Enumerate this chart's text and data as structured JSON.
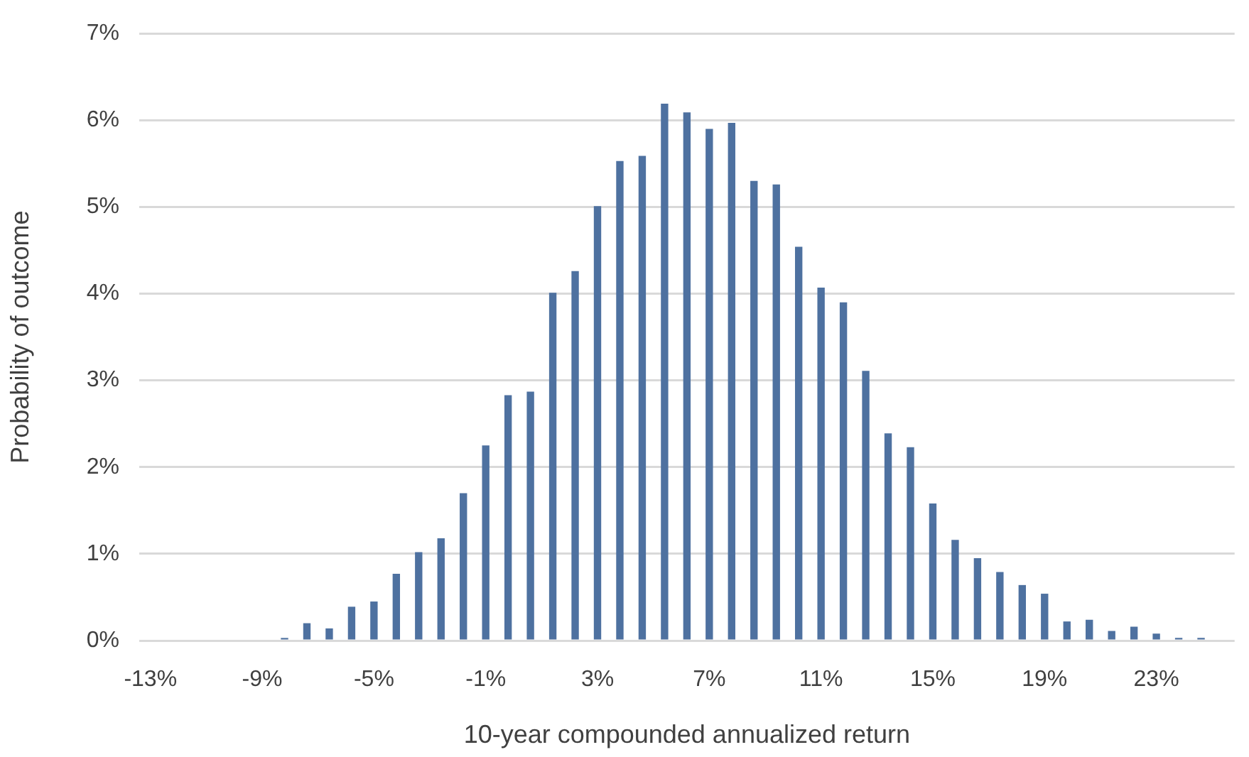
{
  "chart_data": {
    "type": "bar",
    "xlabel": "10-year compounded annualized return",
    "ylabel": "Probability of outcome",
    "categories": [
      "-13%",
      null,
      null,
      null,
      null,
      "-9%",
      null,
      null,
      null,
      null,
      "-5%",
      null,
      null,
      null,
      null,
      "-1%",
      null,
      null,
      null,
      null,
      "3%",
      null,
      null,
      null,
      null,
      "7%",
      null,
      null,
      null,
      null,
      "11%",
      null,
      null,
      null,
      null,
      "15%",
      null,
      null,
      null,
      null,
      "19%",
      null,
      null,
      null,
      null,
      "23%",
      null,
      null,
      null
    ],
    "values": [
      0,
      0,
      0,
      0,
      0,
      0,
      0.03,
      0.2,
      0.14,
      0.39,
      0.45,
      0.77,
      1.02,
      1.18,
      1.7,
      2.25,
      2.83,
      2.87,
      4.01,
      4.26,
      5.01,
      5.53,
      5.59,
      6.19,
      6.09,
      5.9,
      5.97,
      5.3,
      5.26,
      4.54,
      4.07,
      3.9,
      3.11,
      2.39,
      2.23,
      1.58,
      1.16,
      0.95,
      0.79,
      0.64,
      0.54,
      0.22,
      0.24,
      0.11,
      0.16,
      0.08,
      0.03,
      0.03,
      0
    ],
    "color": "#4e71a0",
    "ylim": [
      0,
      7
    ],
    "yticks": [
      {
        "value": 0,
        "label": "0%"
      },
      {
        "value": 1,
        "label": "1%"
      },
      {
        "value": 2,
        "label": "2%"
      },
      {
        "value": 3,
        "label": "3%"
      },
      {
        "value": 4,
        "label": "4%"
      },
      {
        "value": 5,
        "label": "5%"
      },
      {
        "value": 6,
        "label": "6%"
      },
      {
        "value": 7,
        "label": "7%"
      }
    ],
    "grid": "y",
    "legend": false
  }
}
